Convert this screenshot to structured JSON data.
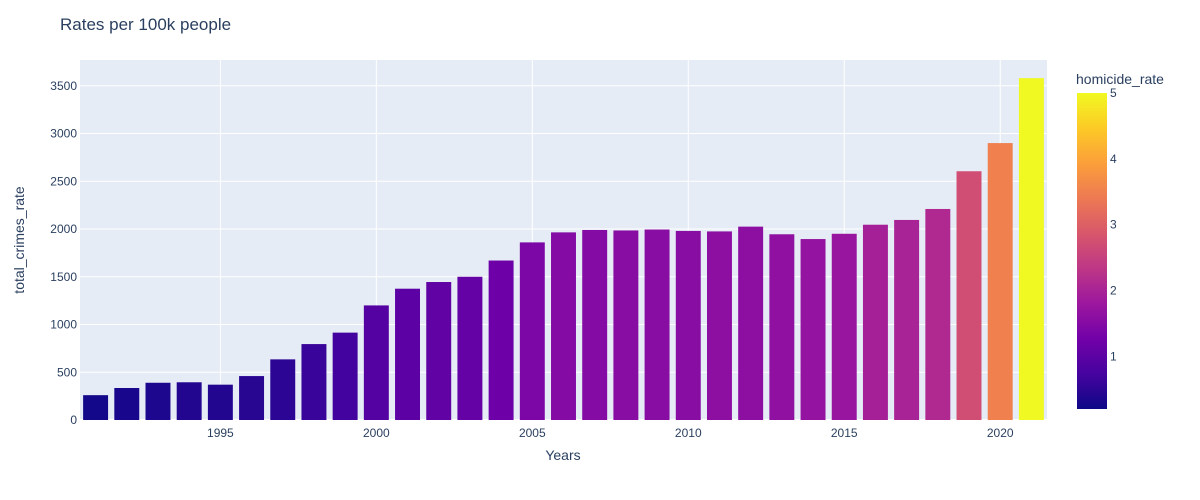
{
  "chart_data": {
    "type": "bar",
    "title": "Rates per 100k people",
    "xlabel": "Years",
    "ylabel": "total_crimes_rate",
    "x": [
      1991,
      1992,
      1993,
      1994,
      1995,
      1996,
      1997,
      1998,
      1999,
      2000,
      2001,
      2002,
      2003,
      2004,
      2005,
      2006,
      2007,
      2008,
      2009,
      2010,
      2011,
      2012,
      2013,
      2014,
      2015,
      2016,
      2017,
      2018,
      2019,
      2020,
      2021
    ],
    "values": [
      260,
      335,
      390,
      395,
      370,
      460,
      635,
      795,
      915,
      1200,
      1375,
      1445,
      1500,
      1670,
      1860,
      1965,
      1990,
      1985,
      1995,
      1980,
      1975,
      2025,
      1945,
      1895,
      1950,
      2045,
      2095,
      2210,
      2605,
      2900,
      3580
    ],
    "color_values": [
      0.25,
      0.3,
      0.35,
      0.4,
      0.4,
      0.45,
      0.5,
      0.6,
      0.7,
      0.9,
      1.0,
      1.05,
      1.1,
      1.2,
      1.4,
      1.5,
      1.5,
      1.55,
      1.55,
      1.55,
      1.6,
      1.6,
      1.65,
      1.7,
      1.75,
      1.95,
      2.0,
      2.1,
      2.7,
      3.5,
      5.0
    ],
    "x_ticks": [
      1995,
      2000,
      2005,
      2010,
      2015,
      2020
    ],
    "y_ticks": [
      0,
      500,
      1000,
      1500,
      2000,
      2500,
      3000,
      3500
    ],
    "ylim": [
      0,
      3770
    ],
    "xlim": [
      1990.5,
      2021.5
    ],
    "grid": true,
    "colorbar": {
      "title": "homicide_rate",
      "range": [
        0.2,
        5.0
      ],
      "ticks": [
        1,
        2,
        3,
        4,
        5
      ],
      "colorscale": [
        "#0d0887",
        "#46039f",
        "#7201a8",
        "#9c179e",
        "#bd3786",
        "#d8576b",
        "#ed7953",
        "#fb9f3a",
        "#fdca26",
        "#f0f921"
      ]
    },
    "plot_background": "#e5ecf6"
  }
}
